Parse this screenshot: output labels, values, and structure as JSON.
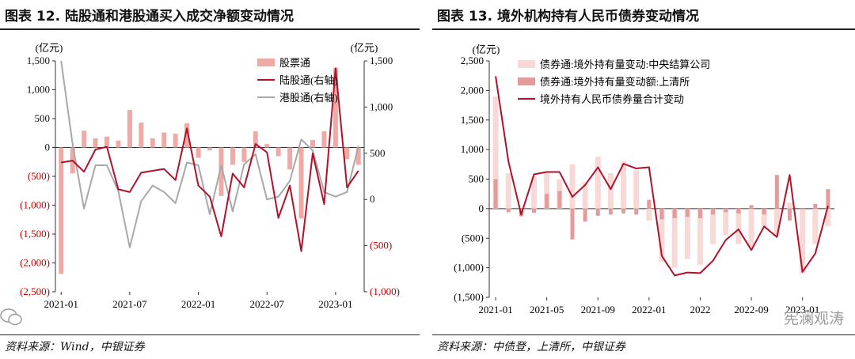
{
  "left_panel": {
    "title": "图表 12. 陆股通和港股通买入成交净额变动情况",
    "source": "资料来源：Wind，中银证券"
  },
  "right_panel": {
    "title": "图表 13. 境外机构持有人民币债券变动情况",
    "source": "资料来源：中债登，上清所，中银证券"
  },
  "watermark": "宪澜观涛",
  "colors": {
    "bar_light": "#f0aaa6",
    "line_dark": "#b0122a",
    "line_gray": "#a8a8a8",
    "bar_pale": "#f9d9d7",
    "bar_mid": "#e49b9a",
    "red_text": "#c00000"
  },
  "chart_data": [
    {
      "type": "bar",
      "title": "图表 12. 陆股通和港股通买入成交净额变动情况",
      "left_unit": "(亿元)",
      "right_unit": "(亿元)",
      "ylim": [
        -2500,
        1500
      ],
      "y2lim": [
        -1000,
        1500
      ],
      "yticks": [
        "1,500",
        "1,000",
        "500",
        "0",
        "(500)",
        "(1,000)",
        "(1,500)",
        "(2,000)",
        "(2,500)"
      ],
      "y2ticks": [
        "1,500",
        "1,000",
        "500",
        "0",
        "(500)",
        "(1,000)"
      ],
      "xticks": [
        "2021-01",
        "2021-07",
        "2022-01",
        "2022-07",
        "2023-01"
      ],
      "x": [
        "2021-01",
        "2021-02",
        "2021-03",
        "2021-04",
        "2021-05",
        "2021-06",
        "2021-07",
        "2021-08",
        "2021-09",
        "2021-10",
        "2021-11",
        "2021-12",
        "2022-01",
        "2022-02",
        "2022-03",
        "2022-04",
        "2022-05",
        "2022-06",
        "2022-07",
        "2022-08",
        "2022-09",
        "2022-10",
        "2022-11",
        "2022-12",
        "2023-01",
        "2023-02",
        "2023-03"
      ],
      "legend": [
        "股票通",
        "陆股通(右轴)",
        "港股通(右轴)"
      ],
      "series": [
        {
          "name": "股票通",
          "type": "bar",
          "axis": "left",
          "values": [
            -2190,
            -450,
            290,
            160,
            190,
            120,
            650,
            430,
            160,
            260,
            240,
            420,
            -180,
            -50,
            -840,
            -300,
            -250,
            280,
            60,
            -150,
            -380,
            -1230,
            130,
            280,
            1380,
            -200,
            -300
          ]
        },
        {
          "name": "陆股通(右轴)",
          "type": "line",
          "axis": "right",
          "values": [
            400,
            420,
            300,
            540,
            570,
            110,
            80,
            290,
            310,
            330,
            210,
            770,
            150,
            30,
            -400,
            280,
            130,
            600,
            510,
            -200,
            150,
            -560,
            500,
            -50,
            1420,
            130,
            310
          ]
        },
        {
          "name": "港股通(右轴)",
          "type": "line",
          "axis": "right",
          "values": [
            1500,
            600,
            -100,
            370,
            370,
            90,
            -520,
            -20,
            150,
            80,
            -40,
            400,
            370,
            -160,
            370,
            -130,
            380,
            490,
            0,
            30,
            200,
            650,
            530,
            80,
            30,
            80,
            580
          ]
        }
      ]
    },
    {
      "type": "bar",
      "title": "图表 13. 境外机构持有人民币债券变动情况",
      "left_unit": "(亿元)",
      "ylim": [
        -1500,
        2500
      ],
      "yticks": [
        "2,500",
        "2,000",
        "1,500",
        "1,000",
        "500",
        "0",
        "(500)",
        "(1,000)",
        "(1,500)"
      ],
      "xticks": [
        "2021-01",
        "2021-05",
        "2021-09",
        "2022-01",
        "2022",
        "2022-09",
        "2023-01"
      ],
      "x": [
        "2021-01",
        "2021-02",
        "2021-03",
        "2021-04",
        "2021-05",
        "2021-06",
        "2021-07",
        "2021-08",
        "2021-09",
        "2021-10",
        "2021-11",
        "2021-12",
        "2022-01",
        "2022-02",
        "2022-03",
        "2022-04",
        "2022-05",
        "2022-06",
        "2022-07",
        "2022-08",
        "2022-09",
        "2022-10",
        "2022-11",
        "2022-12",
        "2023-01",
        "2023-02",
        "2023-03"
      ],
      "legend": [
        "债券通:境外持有量变动:中央结算公司",
        "债券通:境外持有量变动额:上清所",
        "境外持有人民币债券量合计变动"
      ],
      "series": [
        {
          "name": "债券通:境外持有量变动:中央结算公司",
          "type": "bar",
          "values": [
            1900,
            600,
            -80,
            550,
            600,
            500,
            750,
            450,
            880,
            600,
            800,
            650,
            -200,
            -900,
            -1000,
            -850,
            -950,
            -600,
            -450,
            -600,
            -650,
            -300,
            -450,
            100,
            -1100,
            -600,
            -300
          ]
        },
        {
          "name": "债券通:境外持有量变动额:上清所",
          "type": "bar",
          "values": [
            500,
            -60,
            -130,
            -70,
            250,
            300,
            -520,
            -220,
            -120,
            -100,
            -80,
            -100,
            150,
            -180,
            -160,
            -140,
            -160,
            -100,
            -60,
            -80,
            60,
            -100,
            570,
            -200,
            0,
            80,
            330
          ]
        },
        {
          "name": "境外持有人民币债券量合计变动",
          "type": "line",
          "values": [
            2240,
            800,
            -100,
            580,
            620,
            620,
            200,
            400,
            700,
            330,
            760,
            680,
            700,
            -800,
            -1130,
            -1080,
            -1090,
            -880,
            -530,
            -350,
            -700,
            -300,
            -480,
            570,
            -1070,
            -760,
            50
          ]
        }
      ]
    }
  ]
}
